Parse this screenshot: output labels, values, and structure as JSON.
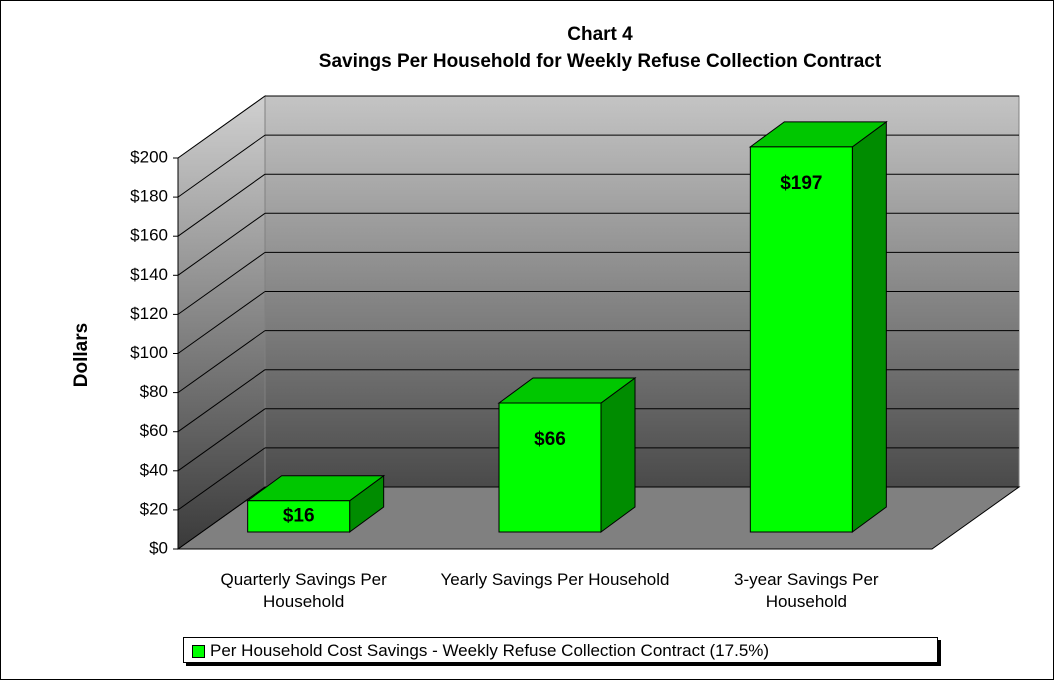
{
  "chart_data": {
    "type": "bar3d",
    "title": "Chart 4",
    "subtitle": "Savings Per Household for Weekly Refuse Collection Contract",
    "y_axis_label": "Dollars",
    "categories": [
      "Quarterly Savings Per Household",
      "Yearly Savings Per Household",
      "3-year Savings Per Household"
    ],
    "series": [
      {
        "name": "Per Household Cost Savings - Weekly Refuse Collection Contract (17.5%)",
        "color": "#00ff00",
        "values": [
          16,
          66,
          197
        ],
        "value_labels": [
          "$16",
          "$66",
          "$197"
        ]
      }
    ],
    "ylim": [
      0,
      200
    ],
    "yticks": [
      {
        "value": 0,
        "label": "$0"
      },
      {
        "value": 20,
        "label": "$20"
      },
      {
        "value": 40,
        "label": "$40"
      },
      {
        "value": 60,
        "label": "$60"
      },
      {
        "value": 80,
        "label": "$80"
      },
      {
        "value": 100,
        "label": "$100"
      },
      {
        "value": 120,
        "label": "$120"
      },
      {
        "value": 140,
        "label": "$140"
      },
      {
        "value": 160,
        "label": "$160"
      },
      {
        "value": 180,
        "label": "$180"
      },
      {
        "value": 200,
        "label": "$200"
      }
    ],
    "grid": true,
    "legend": "bottom"
  }
}
